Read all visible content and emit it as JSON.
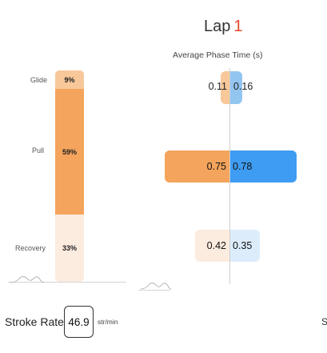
{
  "lap": {
    "label": "Lap",
    "number": "1"
  },
  "phase_time_title": "Average Phase Time (s)",
  "phases": {
    "glide": {
      "label": "Glide",
      "percent": "9%",
      "left_value": "0.11",
      "right_value": "0.16"
    },
    "pull": {
      "label": "Pull",
      "percent": "59%",
      "left_value": "0.75",
      "right_value": "0.78"
    },
    "recovery": {
      "label": "Recovery",
      "percent": "33%",
      "left_value": "0.42",
      "right_value": "0.35"
    }
  },
  "stroke_rate": {
    "label": "Stroke Rate",
    "value": "46.9",
    "unit": "str/min"
  },
  "edge_glyph": "S",
  "colors": {
    "accent_red": "#e8462b",
    "orange_light": "#f8c89a",
    "orange": "#f4a45c",
    "orange_pale": "#fcebdf",
    "blue_light": "#93c5f1",
    "blue": "#3e9cf2",
    "blue_pale": "#dcecfb"
  },
  "icons": [
    "stroke-wave-icon"
  ]
}
